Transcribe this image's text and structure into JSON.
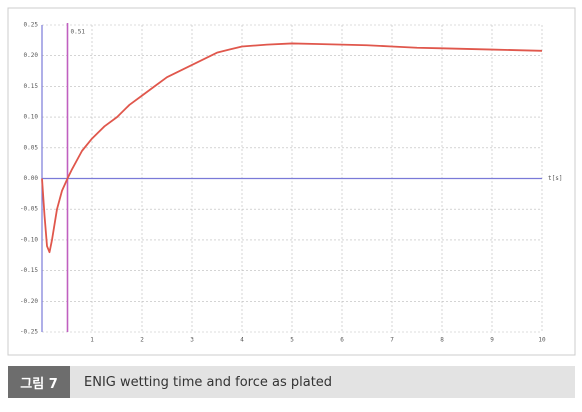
{
  "chart_data": {
    "type": "line",
    "x": [
      0,
      0.05,
      0.1,
      0.15,
      0.2,
      0.3,
      0.4,
      0.51,
      0.6,
      0.8,
      1,
      1.25,
      1.5,
      1.75,
      2,
      2.25,
      2.5,
      2.75,
      3,
      3.25,
      3.5,
      3.75,
      4,
      4.5,
      5,
      5.5,
      6,
      6.5,
      7,
      7.5,
      8,
      8.5,
      9,
      9.5,
      10
    ],
    "series": [
      {
        "name": "force",
        "color": "#e0574c",
        "values": [
          0,
          -0.06,
          -0.11,
          -0.12,
          -0.1,
          -0.05,
          -0.02,
          0,
          0.015,
          0.045,
          0.065,
          0.085,
          0.1,
          0.12,
          0.135,
          0.15,
          0.165,
          0.175,
          0.185,
          0.195,
          0.205,
          0.21,
          0.215,
          0.218,
          0.22,
          0.219,
          0.218,
          0.217,
          0.215,
          0.213,
          0.212,
          0.211,
          0.21,
          0.209,
          0.208
        ]
      }
    ],
    "xlim": [
      0,
      10
    ],
    "xticks": [
      1,
      2,
      3,
      4,
      5,
      6,
      7,
      8,
      9,
      10
    ],
    "ylim": [
      -0.25,
      0.25
    ],
    "yticks": [
      0.25,
      {
        "value": 0.2,
        "label": "0.20"
      },
      0.15,
      {
        "value": 0.1,
        "label": "0.10"
      },
      0.05,
      {
        "value": 0,
        "label": "0.00"
      },
      -0.05,
      {
        "value": -0.1,
        "label": "-0.10"
      },
      -0.15,
      {
        "value": -0.2,
        "label": "-0.20"
      },
      -0.25
    ],
    "x_label": "t[s]",
    "vline": 0.51,
    "grid": true
  },
  "caption": {
    "figure_label": "그림 7",
    "text": "ENIG wetting time and force as plated"
  }
}
